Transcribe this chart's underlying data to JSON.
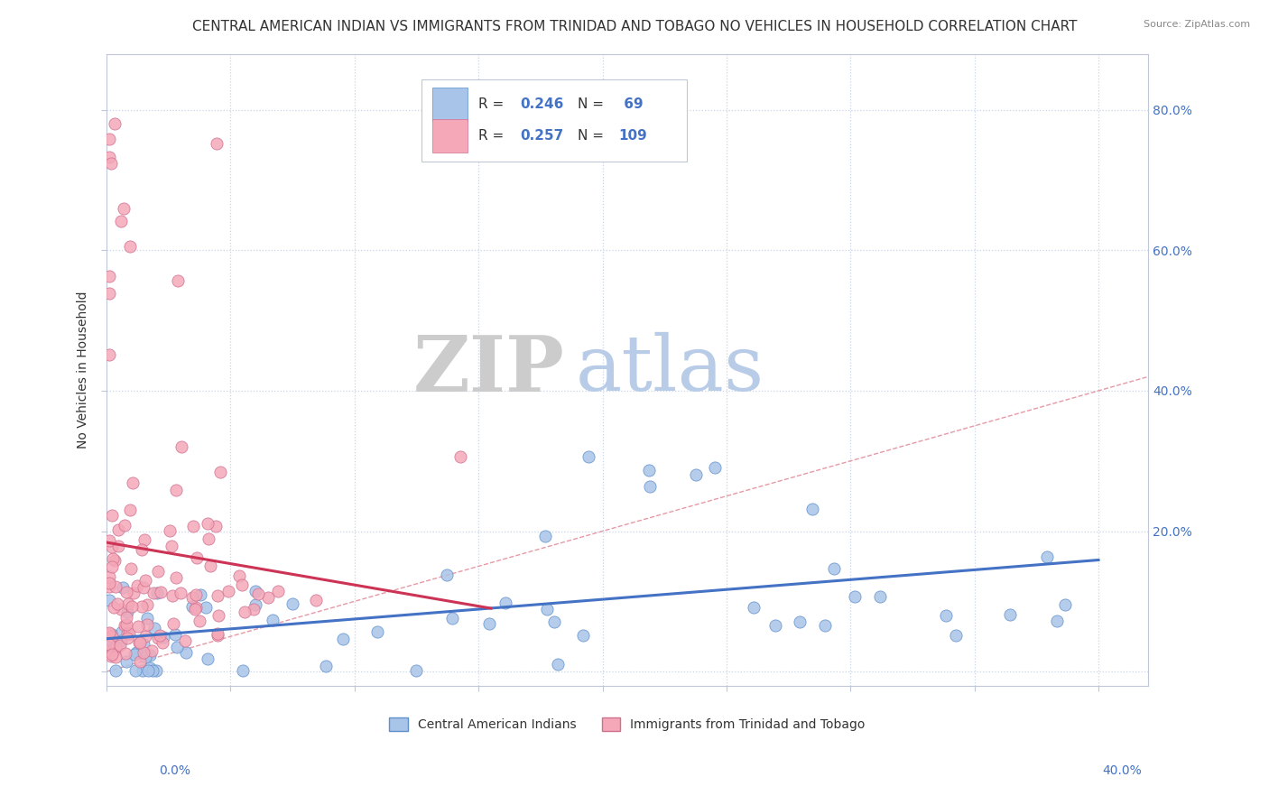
{
  "title": "CENTRAL AMERICAN INDIAN VS IMMIGRANTS FROM TRINIDAD AND TOBAGO NO VEHICLES IN HOUSEHOLD CORRELATION CHART",
  "source": "Source: ZipAtlas.com",
  "ylabel_label": "No Vehicles in Household",
  "xlim": [
    0.0,
    0.42
  ],
  "ylim": [
    -0.02,
    0.88
  ],
  "series1_name": "Central American Indians",
  "series1_color": "#a8c4e8",
  "series1_edge": "#6090cc",
  "series1_R": "0.246",
  "series1_N": "69",
  "series2_name": "Immigrants from Trinidad and Tobago",
  "series2_color": "#f4a8b8",
  "series2_edge": "#d07090",
  "series2_R": "0.257",
  "series2_N": "109",
  "trend1_color": "#4472c4",
  "trend2_color": "#cc3355",
  "ref_line_color": "#e08090",
  "legend_R_N_color": "#4472c4",
  "watermark_ZIP_color": "#cccccc",
  "watermark_atlas_color": "#b8cce8",
  "background_color": "#ffffff",
  "title_fontsize": 11,
  "axis_label_fontsize": 10,
  "tick_fontsize": 10
}
